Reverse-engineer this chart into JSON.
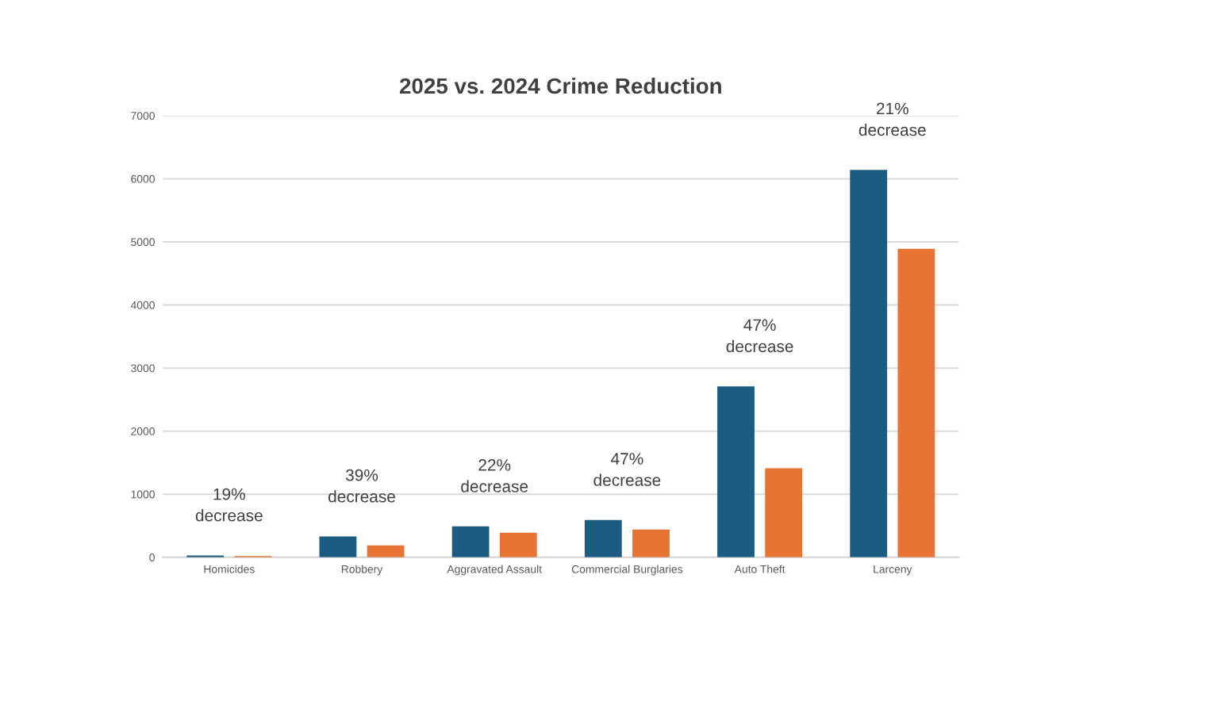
{
  "chart_data": {
    "type": "bar",
    "title": "2025 vs. 2024 Crime Reduction",
    "categories": [
      "Homicides",
      "Robbery",
      "Aggravated Assault",
      "Commercial Burglaries",
      "Auto Theft",
      "Larceny"
    ],
    "series": [
      {
        "color": "#1b5c80",
        "values": [
          30,
          330,
          490,
          590,
          2710,
          6140
        ]
      },
      {
        "color": "#e87434",
        "values": [
          20,
          190,
          390,
          440,
          1410,
          4890
        ]
      }
    ],
    "ylim": [
      0,
      7000
    ],
    "yticks": [
      0,
      1000,
      2000,
      3000,
      4000,
      5000,
      6000,
      7000
    ],
    "grid": "y",
    "legend": false,
    "annotations": [
      "19%\ndecrease",
      "39%\ndecrease",
      "22%\ndecrease",
      "47%\ndecrease",
      "47%\ndecrease",
      "21%\ndecrease"
    ]
  }
}
